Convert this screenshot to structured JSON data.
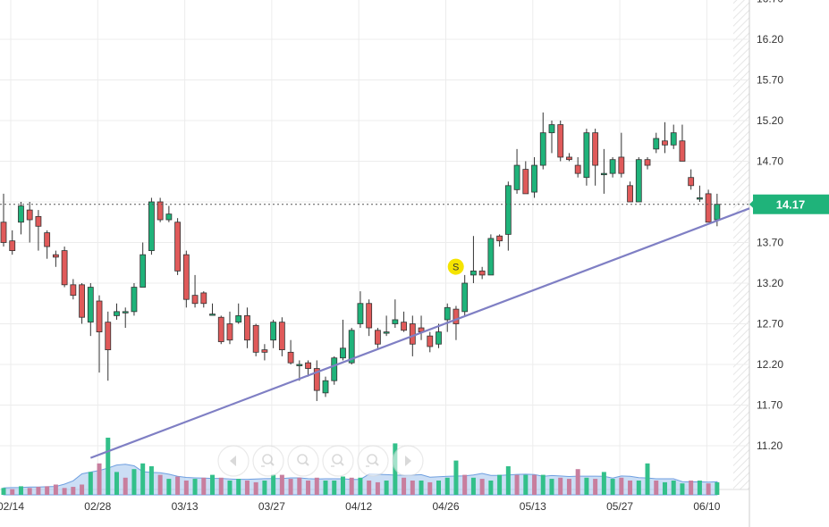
{
  "chart_data": {
    "type": "candlestick",
    "y_axis": {
      "ticks": [
        "11.20",
        "11.70",
        "12.20",
        "12.70",
        "13.20",
        "13.70",
        "14.20",
        "14.70",
        "15.20",
        "15.70",
        "16.20"
      ],
      "range": [
        10.6,
        16.7
      ]
    },
    "x_axis": {
      "ticks": [
        {
          "label": "02/14",
          "index": 0
        },
        {
          "label": "02/28",
          "index": 10
        },
        {
          "label": "03/13",
          "index": 20
        },
        {
          "label": "03/27",
          "index": 30
        },
        {
          "label": "04/12",
          "index": 40
        },
        {
          "label": "04/26",
          "index": 50
        },
        {
          "label": "05/13",
          "index": 60
        },
        {
          "label": "05/27",
          "index": 70
        },
        {
          "label": "06/10",
          "index": 80
        }
      ]
    },
    "last_price": {
      "value": 14.17,
      "label": "14.17"
    },
    "trendline": {
      "start": {
        "index": 10,
        "value": 11.05
      },
      "end": {
        "index": 84,
        "value": 14.05
      }
    },
    "signal": {
      "label": "S",
      "index": 53,
      "value": 13.38
    },
    "candles": [
      [
        13.95,
        13.7,
        14.3,
        13.65
      ],
      [
        13.72,
        13.6,
        13.85,
        13.55
      ],
      [
        13.95,
        14.15,
        14.2,
        13.8
      ],
      [
        14.1,
        13.98,
        14.2,
        13.7
      ],
      [
        14.02,
        13.9,
        14.1,
        13.6
      ],
      [
        13.82,
        13.65,
        13.85,
        13.5
      ],
      [
        13.55,
        13.52,
        13.6,
        13.4
      ],
      [
        13.6,
        13.18,
        13.65,
        13.15
      ],
      [
        13.18,
        13.05,
        13.25,
        13.0
      ],
      [
        13.18,
        12.78,
        13.2,
        12.7
      ],
      [
        12.72,
        13.15,
        13.2,
        12.55
      ],
      [
        12.98,
        12.6,
        13.05,
        12.1
      ],
      [
        12.72,
        12.38,
        12.85,
        12.0
      ],
      [
        12.8,
        12.85,
        12.95,
        12.75
      ],
      [
        12.85,
        12.85,
        12.9,
        12.65
      ],
      [
        12.85,
        13.15,
        13.2,
        12.8
      ],
      [
        13.15,
        13.55,
        13.7,
        13.15
      ],
      [
        13.6,
        14.2,
        14.25,
        13.55
      ],
      [
        14.2,
        13.98,
        14.25,
        13.95
      ],
      [
        13.98,
        14.05,
        14.15,
        13.95
      ],
      [
        13.95,
        13.35,
        14.0,
        13.3
      ],
      [
        13.55,
        13.0,
        13.6,
        12.9
      ],
      [
        13.05,
        12.95,
        13.3,
        12.9
      ],
      [
        13.08,
        12.95,
        13.1,
        12.9
      ],
      [
        12.82,
        12.82,
        12.95,
        12.8
      ],
      [
        12.78,
        12.48,
        12.8,
        12.45
      ],
      [
        12.7,
        12.5,
        12.85,
        12.45
      ],
      [
        12.72,
        12.8,
        12.95,
        12.7
      ],
      [
        12.8,
        12.5,
        12.9,
        12.4
      ],
      [
        12.68,
        12.35,
        12.7,
        12.3
      ],
      [
        12.38,
        12.35,
        12.45,
        12.25
      ],
      [
        12.5,
        12.72,
        12.75,
        12.4
      ],
      [
        12.72,
        12.38,
        12.78,
        12.3
      ],
      [
        12.35,
        12.22,
        12.5,
        12.2
      ],
      [
        12.2,
        12.2,
        12.25,
        12.0
      ],
      [
        12.22,
        12.15,
        12.25,
        12.05
      ],
      [
        12.15,
        11.88,
        12.25,
        11.75
      ],
      [
        11.85,
        12.0,
        12.05,
        11.8
      ],
      [
        12.0,
        12.28,
        12.3,
        11.95
      ],
      [
        12.28,
        12.4,
        12.75,
        12.25
      ],
      [
        12.22,
        12.62,
        12.65,
        12.2
      ],
      [
        12.7,
        12.95,
        13.1,
        12.65
      ],
      [
        12.95,
        12.65,
        13.0,
        12.55
      ],
      [
        12.62,
        12.45,
        12.65,
        12.4
      ],
      [
        12.6,
        12.6,
        12.8,
        12.55
      ],
      [
        12.7,
        12.75,
        13.0,
        12.65
      ],
      [
        12.72,
        12.62,
        12.85,
        12.6
      ],
      [
        12.7,
        12.45,
        12.8,
        12.3
      ],
      [
        12.65,
        12.6,
        12.8,
        12.5
      ],
      [
        12.55,
        12.42,
        12.6,
        12.35
      ],
      [
        12.45,
        12.6,
        12.7,
        12.4
      ],
      [
        12.75,
        12.9,
        12.95,
        12.6
      ],
      [
        12.88,
        12.7,
        12.92,
        12.5
      ],
      [
        12.85,
        13.2,
        13.3,
        12.8
      ],
      [
        13.3,
        13.35,
        13.78,
        13.2
      ],
      [
        13.35,
        13.3,
        13.4,
        13.25
      ],
      [
        13.3,
        13.75,
        13.8,
        13.3
      ],
      [
        13.78,
        13.72,
        13.8,
        13.65
      ],
      [
        13.8,
        14.4,
        14.45,
        13.6
      ],
      [
        14.35,
        14.65,
        14.85,
        14.3
      ],
      [
        14.6,
        14.3,
        14.7,
        14.3
      ],
      [
        14.32,
        14.65,
        14.75,
        14.25
      ],
      [
        14.65,
        15.05,
        15.3,
        14.6
      ],
      [
        15.05,
        15.15,
        15.2,
        14.8
      ],
      [
        15.15,
        14.75,
        15.2,
        14.7
      ],
      [
        14.75,
        14.72,
        14.8,
        14.7
      ],
      [
        14.65,
        14.55,
        14.75,
        14.5
      ],
      [
        14.5,
        15.05,
        15.1,
        14.4
      ],
      [
        15.05,
        14.65,
        15.1,
        14.4
      ],
      [
        14.55,
        14.55,
        14.85,
        14.3
      ],
      [
        14.55,
        14.72,
        14.75,
        14.5
      ],
      [
        14.75,
        14.55,
        15.05,
        14.5
      ],
      [
        14.4,
        14.2,
        14.45,
        14.2
      ],
      [
        14.2,
        14.72,
        14.75,
        14.2
      ],
      [
        14.72,
        14.65,
        14.75,
        14.6
      ],
      [
        14.85,
        14.98,
        15.05,
        14.8
      ],
      [
        14.95,
        14.9,
        15.18,
        14.8
      ],
      [
        14.9,
        15.05,
        15.15,
        14.85
      ],
      [
        14.95,
        14.7,
        15.15,
        14.7
      ],
      [
        14.5,
        14.4,
        14.6,
        14.35
      ],
      [
        14.25,
        14.25,
        14.4,
        14.2
      ],
      [
        14.3,
        13.95,
        14.35,
        13.95
      ],
      [
        13.98,
        14.17,
        14.3,
        13.9
      ]
    ],
    "volume": [
      {
        "v": 0.12,
        "u": 1
      },
      {
        "v": 0.1,
        "u": 0
      },
      {
        "v": 0.15,
        "u": 1
      },
      {
        "v": 0.12,
        "u": 0
      },
      {
        "v": 0.14,
        "u": 0
      },
      {
        "v": 0.15,
        "u": 0
      },
      {
        "v": 0.18,
        "u": 0
      },
      {
        "v": 0.12,
        "u": 0
      },
      {
        "v": 0.14,
        "u": 0
      },
      {
        "v": 0.18,
        "u": 0
      },
      {
        "v": 0.4,
        "u": 1
      },
      {
        "v": 0.55,
        "u": 0
      },
      {
        "v": 1.0,
        "u": 1
      },
      {
        "v": 0.4,
        "u": 1
      },
      {
        "v": 0.3,
        "u": 0
      },
      {
        "v": 0.45,
        "u": 1
      },
      {
        "v": 0.55,
        "u": 1
      },
      {
        "v": 0.5,
        "u": 1
      },
      {
        "v": 0.35,
        "u": 0
      },
      {
        "v": 0.28,
        "u": 1
      },
      {
        "v": 0.32,
        "u": 0
      },
      {
        "v": 0.25,
        "u": 0
      },
      {
        "v": 0.28,
        "u": 1
      },
      {
        "v": 0.3,
        "u": 0
      },
      {
        "v": 0.35,
        "u": 1
      },
      {
        "v": 0.3,
        "u": 0
      },
      {
        "v": 0.25,
        "u": 1
      },
      {
        "v": 0.28,
        "u": 1
      },
      {
        "v": 0.25,
        "u": 0
      },
      {
        "v": 0.22,
        "u": 0
      },
      {
        "v": 0.25,
        "u": 1
      },
      {
        "v": 0.35,
        "u": 1
      },
      {
        "v": 0.35,
        "u": 0
      },
      {
        "v": 0.28,
        "u": 0
      },
      {
        "v": 0.3,
        "u": 0
      },
      {
        "v": 0.25,
        "u": 0
      },
      {
        "v": 0.3,
        "u": 0
      },
      {
        "v": 0.25,
        "u": 1
      },
      {
        "v": 0.25,
        "u": 1
      },
      {
        "v": 0.32,
        "u": 1
      },
      {
        "v": 0.3,
        "u": 0
      },
      {
        "v": 0.3,
        "u": 1
      },
      {
        "v": 0.25,
        "u": 0
      },
      {
        "v": 0.22,
        "u": 0
      },
      {
        "v": 0.25,
        "u": 1
      },
      {
        "v": 0.9,
        "u": 1
      },
      {
        "v": 0.3,
        "u": 0
      },
      {
        "v": 0.25,
        "u": 0
      },
      {
        "v": 0.25,
        "u": 1
      },
      {
        "v": 0.22,
        "u": 0
      },
      {
        "v": 0.25,
        "u": 1
      },
      {
        "v": 0.3,
        "u": 1
      },
      {
        "v": 0.6,
        "u": 1
      },
      {
        "v": 0.35,
        "u": 0
      },
      {
        "v": 0.3,
        "u": 1
      },
      {
        "v": 0.28,
        "u": 0
      },
      {
        "v": 0.25,
        "u": 1
      },
      {
        "v": 0.35,
        "u": 1
      },
      {
        "v": 0.5,
        "u": 1
      },
      {
        "v": 0.35,
        "u": 0
      },
      {
        "v": 0.35,
        "u": 1
      },
      {
        "v": 0.35,
        "u": 0
      },
      {
        "v": 0.35,
        "u": 1
      },
      {
        "v": 0.28,
        "u": 1
      },
      {
        "v": 0.3,
        "u": 0
      },
      {
        "v": 0.28,
        "u": 0
      },
      {
        "v": 0.45,
        "u": 0
      },
      {
        "v": 0.3,
        "u": 1
      },
      {
        "v": 0.28,
        "u": 0
      },
      {
        "v": 0.4,
        "u": 1
      },
      {
        "v": 0.28,
        "u": 1
      },
      {
        "v": 0.3,
        "u": 0
      },
      {
        "v": 0.25,
        "u": 0
      },
      {
        "v": 0.25,
        "u": 1
      },
      {
        "v": 0.55,
        "u": 1
      },
      {
        "v": 0.25,
        "u": 0
      },
      {
        "v": 0.22,
        "u": 1
      },
      {
        "v": 0.25,
        "u": 1
      },
      {
        "v": 0.2,
        "u": 1
      },
      {
        "v": 0.25,
        "u": 0
      },
      {
        "v": 0.25,
        "u": 1
      },
      {
        "v": 0.2,
        "u": 0
      },
      {
        "v": 0.22,
        "u": 1
      }
    ],
    "grid": true
  },
  "colors": {
    "up": "#1fb37a",
    "down": "#e05a5a",
    "candle_edge": "#333333",
    "trendline": "#7f7fc4",
    "badge": "#1fb37a",
    "signal": "#f5e400",
    "vol_up": "#33c08a",
    "vol_down": "#c87e9e",
    "vol_area": "#a9c8ee",
    "grid": "#ececec"
  },
  "zoom_controls": [
    {
      "name": "scroll-left-button",
      "icon": "chevron-left-icon"
    },
    {
      "name": "zoom-in-button",
      "icon": "zoom-in-icon"
    },
    {
      "name": "zoom-out-button",
      "icon": "zoom-out-icon"
    },
    {
      "name": "zoom-reset-button",
      "icon": "zoom-reset-icon"
    },
    {
      "name": "zoom-fit-button",
      "icon": "zoom-fit-icon"
    },
    {
      "name": "scroll-right-button",
      "icon": "chevron-right-icon"
    }
  ]
}
